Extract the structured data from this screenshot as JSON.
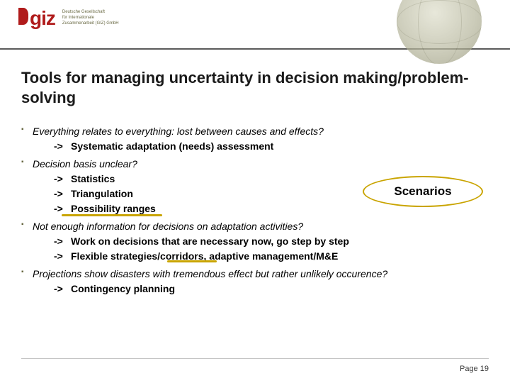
{
  "logo": {
    "text": "giz",
    "subtitle_l1": "Deutsche Gesellschaft",
    "subtitle_l2": "für Internationale",
    "subtitle_l3": "Zusammenarbeit (GIZ) GmbH"
  },
  "title": "Tools for managing uncertainty in decision making/problem-solving",
  "bullets": [
    {
      "lead": "Everything relates to everything: lost between causes and effects?",
      "subs": [
        {
          "arrow": "->",
          "text": "Systematic adaptation (needs) assessment",
          "bold": true
        }
      ]
    },
    {
      "lead": "Decision basis unclear?",
      "subs": [
        {
          "arrow": "->",
          "text": "Statistics",
          "bold": true
        },
        {
          "arrow": "->",
          "text": "Triangulation",
          "bold": true
        },
        {
          "arrow": "->",
          "text": "Possibility ranges",
          "bold": true
        }
      ]
    },
    {
      "lead": "Not enough information for decisions on adaptation activities?",
      "subs": [
        {
          "arrow": "->",
          "text": "Work on decisions that are necessary now, go step by step",
          "bold": true
        },
        {
          "arrow": "->",
          "text": "Flexible strategies/corridors, adaptive management/M&E",
          "bold": true
        }
      ]
    },
    {
      "lead": "Projections show disasters with tremendous effect but rather unlikely occurence?",
      "subs": [
        {
          "arrow": "->",
          "text": "Contingency planning",
          "bold": true
        }
      ]
    }
  ],
  "callout": "Scenarios",
  "footer": {
    "label": "Page",
    "num": "19"
  },
  "colors": {
    "accent_red": "#b01b1b",
    "accent_olive": "#6a6a44",
    "highlight_yellow": "#c9a400"
  }
}
